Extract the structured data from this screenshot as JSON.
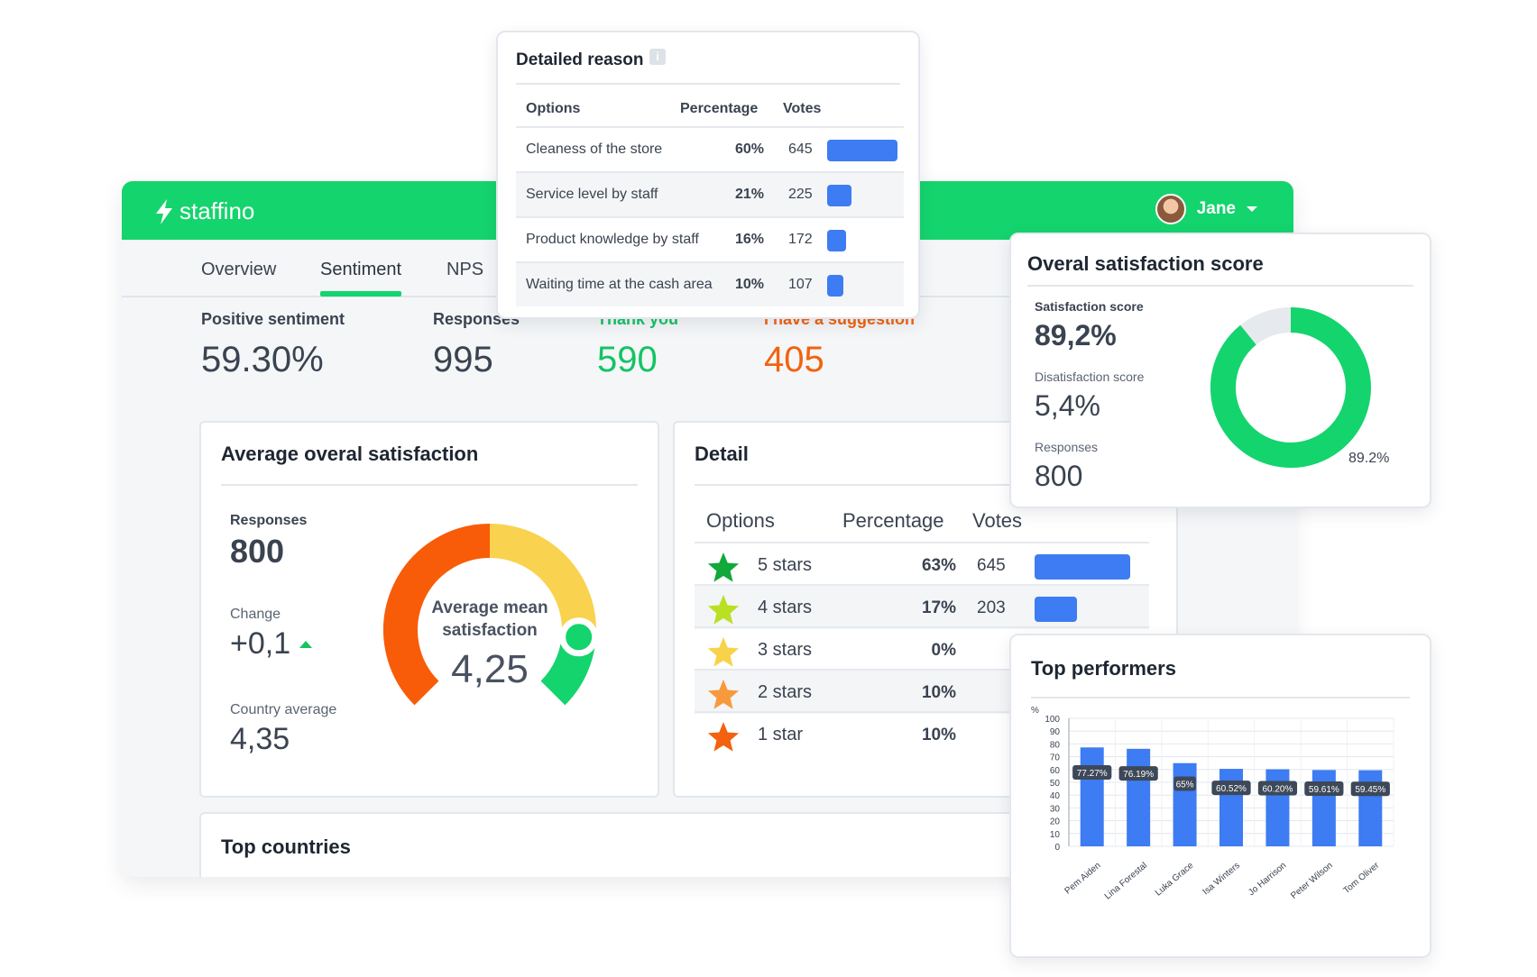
{
  "app": {
    "brand": "staffino",
    "user_name": "Jane",
    "tabs": [
      "Overview",
      "Sentiment",
      "NPS"
    ],
    "active_tab": "Sentiment"
  },
  "kpis": [
    {
      "label": "Positive sentiment",
      "value": "59.30%",
      "color": "#3a4350"
    },
    {
      "label": "Responses",
      "value": "995",
      "color": "#3a4350"
    },
    {
      "label": "Thank you",
      "value": "590",
      "color": "#14c464"
    },
    {
      "label": "I have a suggestion",
      "value": "405",
      "color": "#f2620f"
    }
  ],
  "avg_satisfaction": {
    "title": "Average overal satisfaction",
    "responses_label": "Responses",
    "responses_value": "800",
    "change_label": "Change",
    "change_value": "+0,1",
    "country_label": "Country average",
    "country_value": "4,35",
    "gauge_label_line1": "Average mean",
    "gauge_label_line2": "satisfaction",
    "gauge_value": "4,25",
    "gauge_level": 0.85
  },
  "detail": {
    "title": "Detail",
    "headers": [
      "Options",
      "Percentage",
      "Votes"
    ],
    "rows": [
      {
        "option": "5 stars",
        "percentage": "63%",
        "votes": "645",
        "bar": 1.0,
        "star_color": "#12a83a"
      },
      {
        "option": "4 stars",
        "percentage": "17%",
        "votes": "203",
        "bar": 0.44,
        "star_color": "#b9e023"
      },
      {
        "option": "3 stars",
        "percentage": "0%",
        "votes": "",
        "bar": 0,
        "star_color": "#f8d24a"
      },
      {
        "option": "2 stars",
        "percentage": "10%",
        "votes": "",
        "bar": 0,
        "star_color": "#f79a3e"
      },
      {
        "option": "1 star",
        "percentage": "10%",
        "votes": "",
        "bar": 0,
        "star_color": "#f2620f"
      }
    ]
  },
  "top_countries": {
    "title": "Top countries"
  },
  "detailed_reason": {
    "title": "Detailed reason",
    "info_icon": "i",
    "headers": [
      "Options",
      "Percentage",
      "Votes"
    ],
    "rows": [
      {
        "option": "Cleaness of the store",
        "percentage": "60%",
        "votes": "645",
        "bar": 1.0
      },
      {
        "option": "Service level by staff",
        "percentage": "21%",
        "votes": "225",
        "bar": 0.35
      },
      {
        "option": "Product knowledge by staff",
        "percentage": "16%",
        "votes": "172",
        "bar": 0.27
      },
      {
        "option": "Waiting time at the cash area",
        "percentage": "10%",
        "votes": "107",
        "bar": 0.17
      }
    ]
  },
  "satisfaction_score": {
    "title": "Overal satisfaction score",
    "score_label": "Satisfaction score",
    "score_value": "89,2%",
    "dissatisfaction_label": "Disatisfaction score",
    "dissatisfaction_value": "5,4%",
    "responses_label": "Responses",
    "responses_value": "800",
    "donut_label": "89.2%",
    "donut_fraction": 0.892
  },
  "chart_data": {
    "type": "bar",
    "title": "Top performers",
    "ylabel": "%",
    "ylim": [
      0,
      100
    ],
    "yticks": [
      "0",
      "10",
      "20",
      "30",
      "40",
      "50",
      "60",
      "70",
      "80",
      "90",
      "100"
    ],
    "categories": [
      "Pem Aiden",
      "Lina Forestal",
      "Luka Grace",
      "Isa Winters",
      "Jo Harrison",
      "Peter Wilson",
      "Tom Oliver"
    ],
    "values": [
      77.27,
      76.19,
      65,
      60.52,
      60.2,
      59.61,
      59.45
    ],
    "labels": [
      "77.27%",
      "76.19%",
      "65%",
      "60.52%",
      "60.20%",
      "59.61%",
      "59.45%"
    ],
    "grid": true,
    "color": "#3d7cf2"
  }
}
